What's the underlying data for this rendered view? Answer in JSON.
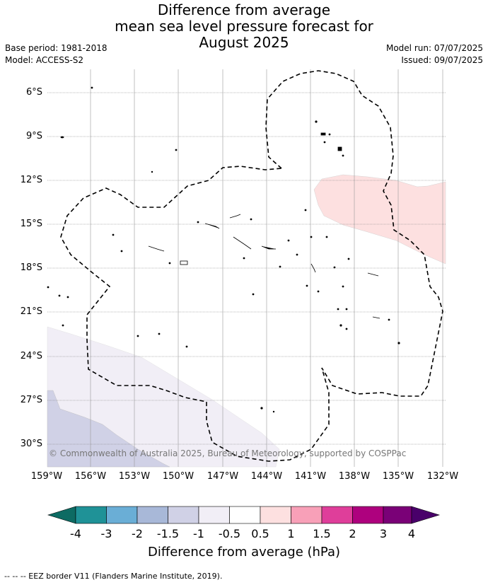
{
  "title": {
    "line1": "Difference from average",
    "line2": "mean sea level pressure forecast for",
    "line3": "August 2025"
  },
  "meta": {
    "base_period": "Base period: 1981-2018",
    "model": "Model: ACCESS-S2",
    "model_run": "Model run: 07/07/2025",
    "issued": "Issued: 09/07/2025"
  },
  "map": {
    "lat_labels": [
      "6°S",
      "9°S",
      "12°S",
      "15°S",
      "18°S",
      "21°S",
      "24°S",
      "27°S",
      "30°S"
    ],
    "lon_labels": [
      "159°W",
      "156°W",
      "153°W",
      "150°W",
      "147°W",
      "144°W",
      "141°W",
      "138°W",
      "135°W",
      "132°W"
    ],
    "copyright": "© Commonwealth of Australia 2025, Bureau of Meteorology, supported by COSPPac",
    "anomaly_regions": [
      {
        "name": "northeast positive anomaly",
        "level": "0.5 to 1",
        "color": "#fde0e0"
      },
      {
        "name": "southwest slight negative anomaly",
        "level": "-1 to -0.5",
        "color": "#f1eef6"
      },
      {
        "name": "southwest negative anomaly",
        "level": "-1.5 to -1",
        "color": "#d0d1e6"
      }
    ]
  },
  "colorbar": {
    "ticks": [
      "-4",
      "-3",
      "-2",
      "-1.5",
      "-1",
      "-0.5",
      "0.5",
      "1",
      "1.5",
      "2",
      "3",
      "4"
    ],
    "colors": [
      "#0d6b63",
      "#1f9297",
      "#6aaed6",
      "#a8b8d8",
      "#d0d1e6",
      "#f1eef6",
      "#ffffff",
      "#fde0e0",
      "#f8a0b8",
      "#df3e9a",
      "#ae017e",
      "#7a0177",
      "#49006a"
    ],
    "title": "Difference from average (hPa)"
  },
  "footnote": "--  --  -- EEZ border V11 (Flanders Marine Institute, 2019)."
}
